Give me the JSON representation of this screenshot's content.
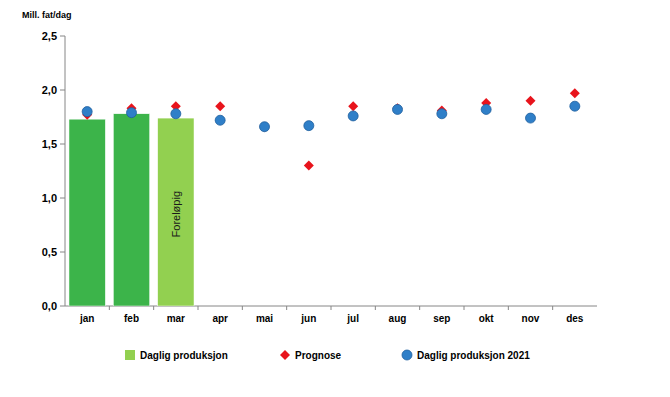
{
  "chart_data": {
    "type": "bar",
    "y_label": "Mill. fat/dag",
    "categories": [
      "jan",
      "feb",
      "mar",
      "apr",
      "mai",
      "jun",
      "jul",
      "aug",
      "sep",
      "okt",
      "nov",
      "des"
    ],
    "ylim": [
      0,
      2.5
    ],
    "yticks": [
      {
        "value": 0,
        "label": "0,0"
      },
      {
        "value": 0.5,
        "label": "0,5"
      },
      {
        "value": 1,
        "label": "1,0"
      },
      {
        "value": 1.5,
        "label": "1,5"
      },
      {
        "value": 2,
        "label": "2,0"
      },
      {
        "value": 2.5,
        "label": "2,5"
      }
    ],
    "grid": false,
    "legend": "bottom",
    "annotations": [
      {
        "text": "Foreløpig",
        "x": "mar"
      }
    ],
    "series": [
      {
        "name": "Daglig produksjon",
        "type": "bar",
        "color": "#92d050",
        "colors": [
          "#3cb44a",
          "#3cb44a",
          "#92d050",
          null,
          null,
          null,
          null,
          null,
          null,
          null,
          null,
          null
        ],
        "values": [
          1.73,
          1.78,
          1.74,
          null,
          null,
          null,
          null,
          null,
          null,
          null,
          null,
          null
        ]
      },
      {
        "name": "Prognose",
        "type": "scatter",
        "marker": "diamond",
        "color": "#e8141c",
        "values": [
          1.77,
          1.83,
          1.85,
          1.85,
          1.66,
          1.3,
          1.85,
          1.83,
          1.81,
          1.88,
          1.9,
          1.97
        ]
      },
      {
        "name": "Daglig produksjon 2021",
        "type": "scatter",
        "marker": "circle",
        "color": "#2f7fc8",
        "values": [
          1.8,
          1.79,
          1.78,
          1.72,
          1.66,
          1.67,
          1.76,
          1.82,
          1.78,
          1.82,
          1.74,
          1.85
        ]
      }
    ]
  }
}
